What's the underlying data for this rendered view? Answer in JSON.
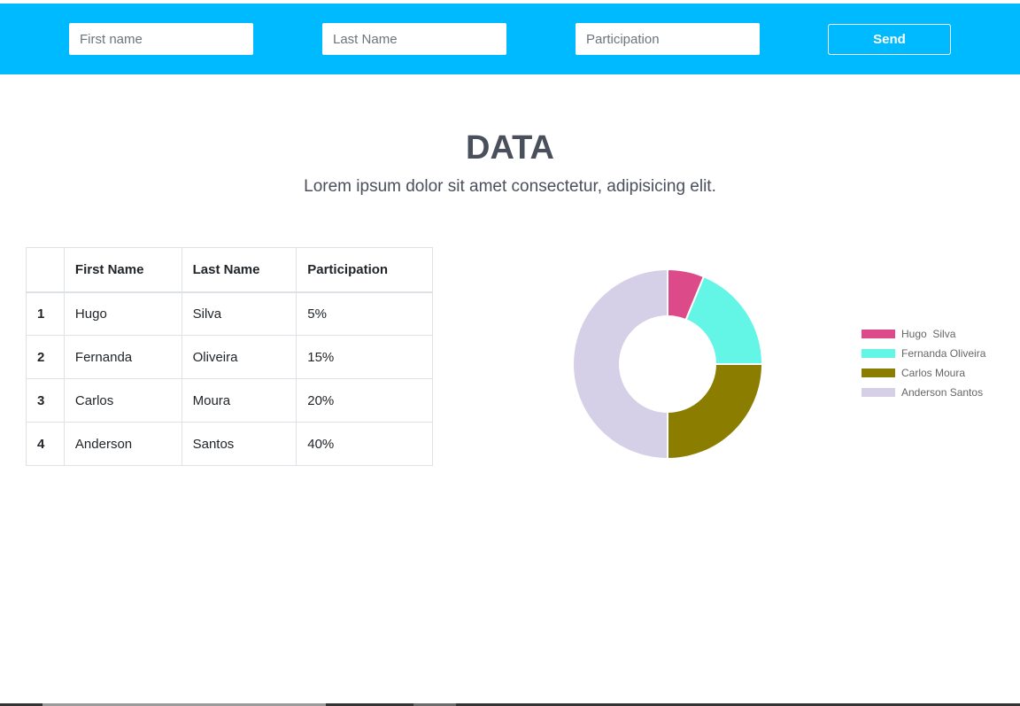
{
  "form": {
    "first_name_placeholder": "First name",
    "last_name_placeholder": "Last Name",
    "participation_placeholder": "Participation",
    "send_label": "Send"
  },
  "heading": {
    "title": "DATA",
    "subtitle": "Lorem ipsum dolor sit amet consectetur, adipisicing elit."
  },
  "table": {
    "headers": [
      "",
      "First Name",
      "Last Name",
      "Participation"
    ],
    "rows": [
      [
        "1",
        "Hugo",
        "Silva",
        "5%"
      ],
      [
        "2",
        "Fernanda",
        "Oliveira",
        "15%"
      ],
      [
        "3",
        "Carlos",
        "Moura",
        "20%"
      ],
      [
        "4",
        "Anderson",
        "Santos",
        "40%"
      ]
    ]
  },
  "colors": {
    "topbar": "#00baff",
    "text_dark": "#4a4f5c"
  },
  "chart_data": {
    "type": "pie",
    "variant": "doughnut",
    "categories": [
      "Hugo  Silva",
      "Fernanda Oliveira",
      "Carlos Moura",
      "Anderson Santos"
    ],
    "values": [
      5,
      15,
      20,
      40
    ],
    "colors": [
      "#dc4a8a",
      "#63f5e6",
      "#8a7d00",
      "#d5cfe7"
    ],
    "legend": "right"
  }
}
